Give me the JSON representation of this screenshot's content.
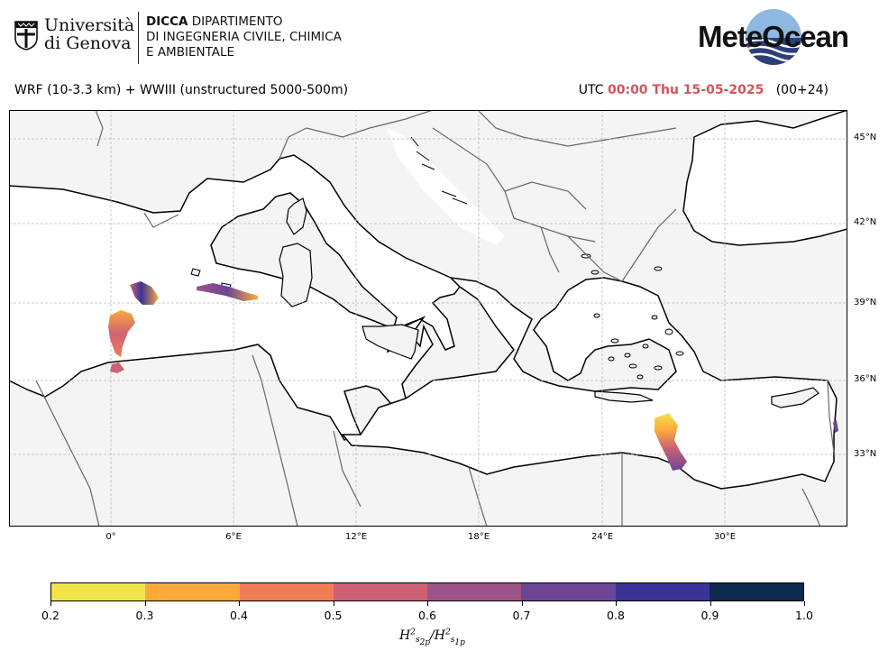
{
  "header": {
    "university_line1": "Università",
    "university_line2": "di Genova",
    "dept_line1_bold": "DICCA",
    "dept_line1_rest": " DIPARTIMENTO",
    "dept_line2": "DI INGEGNERIA CIVILE, CHIMICA",
    "dept_line3": "E AMBIENTALE",
    "brand": "MeteOcean"
  },
  "run": {
    "models": "WRF (10-3.3 km) + WWIII (unstructured 5000-500m)",
    "tz": "UTC",
    "datetime": "00:00 Thu 15-05-2025",
    "lead": "(00+24)"
  },
  "map": {
    "lat_labels": [
      "45°N",
      "42°N",
      "39°N",
      "36°N",
      "33°N"
    ],
    "lon_labels": [
      "0°",
      "6°E",
      "12°E",
      "18°E",
      "24°E",
      "30°E"
    ],
    "colors": {
      "land": "#f4f4f4",
      "sea": "#ffffff",
      "coast": "#000000",
      "border": "#666666",
      "grid": "#bbbbbb"
    }
  },
  "colorbar": {
    "ticks": [
      "0.2",
      "0.3",
      "0.4",
      "0.5",
      "0.6",
      "0.7",
      "0.8",
      "0.9",
      "1.0"
    ],
    "colors": [
      "#f1e34b",
      "#fca93c",
      "#ef7d55",
      "#cd6274",
      "#9e5487",
      "#6a4694",
      "#3a3496",
      "#0d2a4f"
    ],
    "label": "H²s2p/H²s1p"
  }
}
